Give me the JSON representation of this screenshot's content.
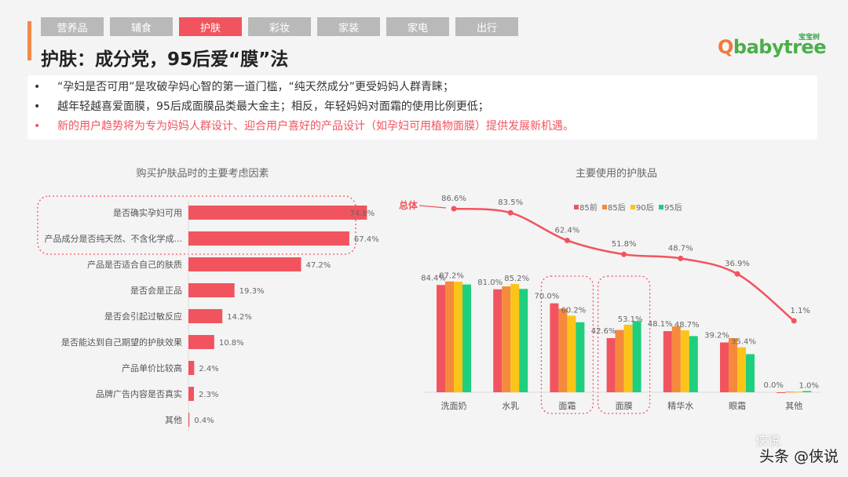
{
  "tabs": [
    {
      "label": "营养品"
    },
    {
      "label": "辅食"
    },
    {
      "label": "护肤",
      "active": true
    },
    {
      "label": "彩妆"
    },
    {
      "label": "家装"
    },
    {
      "label": "家电"
    },
    {
      "label": "出行"
    }
  ],
  "title": "护肤：成分党，95后爱“膜”法",
  "logo": {
    "en_prefix": "Q",
    "en": "babytree",
    "cn": "宝宝树"
  },
  "bullets": [
    {
      "text": "“孕妇是否可用”是攻破孕妈心智的第一道门槛，“纯天然成分”更受妈妈人群青睐；",
      "highlight": false
    },
    {
      "text": "越年轻越喜爱面膜，95后成面膜品类最大金主；相反，年轻妈妈对面霜的使用比例更低；",
      "highlight": false
    },
    {
      "text": "新的用户趋势将为专为妈妈人群设计、迎合用户喜好的产品设计（如孕妇可用植物面膜）提供发展新机遇。",
      "highlight": true
    }
  ],
  "bullet_symbol": "•",
  "watermark": {
    "main": "头条 @侠说",
    "secondary": "侠说"
  },
  "colors": {
    "accent": "#f1545f",
    "s85前": "#f1545f",
    "s85后": "#f58a3c",
    "s90后": "#fcc419",
    "s95后": "#1ecf7e"
  },
  "chart_data": [
    {
      "type": "bar",
      "orientation": "horizontal",
      "title": "购买护肤品时的主要考虑因素",
      "categories": [
        "是否确实孕妇可用",
        "产品成分是否纯天然、不含化学成...",
        "产品是否适合自己的肤质",
        "是否会是正品",
        "是否会引起过敏反应",
        "是否能达到自己期望的护肤效果",
        "产品单价比较高",
        "品牌广告内容是否真实",
        "其他"
      ],
      "values": [
        74.8,
        67.4,
        47.2,
        19.3,
        14.2,
        10.8,
        2.4,
        2.3,
        0.4
      ],
      "labels": [
        "74.8%",
        "67.4%",
        "47.2%",
        "19.3%",
        "14.2%",
        "10.8%",
        "2.4%",
        "2.3%",
        "0.4%"
      ],
      "highlighted": [
        0,
        1
      ]
    },
    {
      "type": "bar+line",
      "title": "主要使用的护肤品",
      "categories": [
        "洗面奶",
        "水乳",
        "面霜",
        "面膜",
        "精华水",
        "眼霜",
        "其他"
      ],
      "series": [
        {
          "name": "85前",
          "values": [
            84.4,
            81.0,
            70.0,
            42.6,
            48.1,
            39.2,
            0.0
          ]
        },
        {
          "name": "85后",
          "values": [
            87.2,
            83.3,
            65.8,
            49.0,
            51.8,
            42.6,
            0.5
          ]
        },
        {
          "name": "90后",
          "values": [
            87.0,
            85.2,
            60.2,
            53.1,
            48.7,
            35.4,
            0.5
          ]
        },
        {
          "name": "95后",
          "values": [
            84.8,
            81.3,
            55.1,
            56.0,
            44.2,
            30.0,
            1.0
          ]
        }
      ],
      "bar_labels": [
        [
          {
            "s": 0,
            "t": "84.4%"
          },
          {
            "s": 1,
            "t": "87.2%"
          }
        ],
        [
          {
            "s": 0,
            "t": "81.0%"
          },
          {
            "s": 2,
            "t": "85.2%"
          }
        ],
        [
          {
            "s": 0,
            "t": "70.0%"
          },
          {
            "s": 2,
            "t": "60.2%"
          }
        ],
        [
          {
            "s": 0,
            "t": "42.6%"
          },
          {
            "s": 2,
            "t": "53.1%"
          }
        ],
        [
          {
            "s": 0,
            "t": "48.1%"
          },
          {
            "s": 2,
            "t": "48.7%"
          }
        ],
        [
          {
            "s": 0,
            "t": "39.2%"
          },
          {
            "s": 2,
            "t": "35.4%"
          }
        ],
        [
          {
            "s": 0,
            "t": "0.0%"
          },
          {
            "s": 3,
            "t": "1.0%"
          }
        ]
      ],
      "line": {
        "name": "总体",
        "values": [
          86.6,
          83.5,
          62.4,
          51.8,
          48.7,
          36.9,
          1.1
        ],
        "labels": [
          "86.6%",
          "83.5%",
          "62.4%",
          "51.8%",
          "48.7%",
          "36.9%",
          "1.1%"
        ]
      },
      "legend_position": "top-right",
      "highlighted": [
        2,
        3
      ]
    }
  ]
}
